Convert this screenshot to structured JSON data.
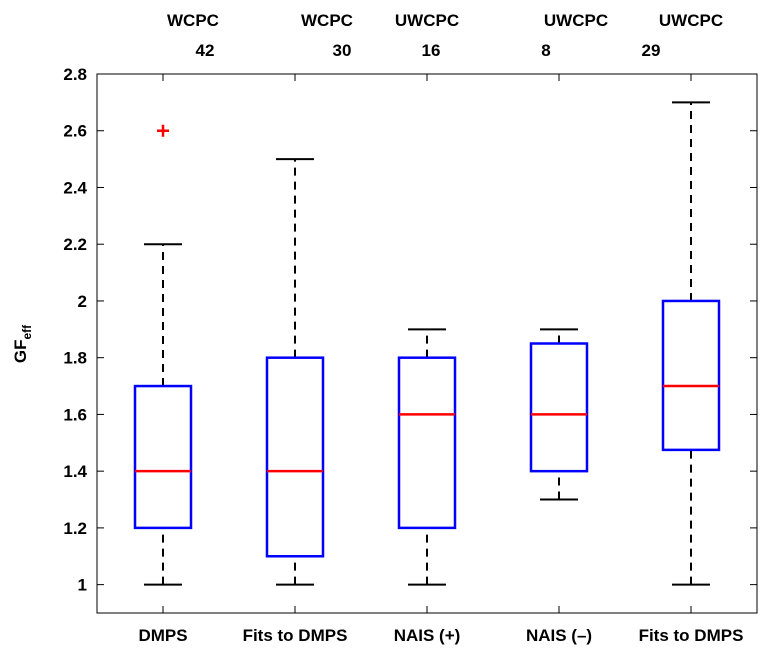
{
  "chart_data": {
    "type": "box",
    "y_label": "GF",
    "y_label_subscript": "eff",
    "categories": [
      "DMPS",
      "Fits to DMPS",
      "NAIS (+)",
      "NAIS (–)",
      "Fits to DMPS"
    ],
    "top_labels": [
      "WCPC",
      "WCPC",
      "UWCPC",
      "UWCPC",
      "UWCPC"
    ],
    "top_numbers": [
      42,
      30,
      16,
      8,
      29
    ],
    "whisker_low": [
      1.0,
      1.0,
      1.0,
      1.3,
      1.0
    ],
    "q1": [
      1.2,
      1.1,
      1.2,
      1.4,
      1.475
    ],
    "median": [
      1.4,
      1.4,
      1.6,
      1.6,
      1.7
    ],
    "q3": [
      1.7,
      1.8,
      1.8,
      1.85,
      2.0
    ],
    "whisker_high": [
      2.2,
      2.5,
      1.9,
      1.9,
      2.7
    ],
    "outliers": [
      [
        2.6
      ],
      [],
      [],
      [],
      []
    ],
    "box_color": "#0000ff",
    "median_color": "#ff0000",
    "whisker_color": "#000000",
    "outlier_color": "#ff0000",
    "ylim": [
      0.9,
      2.8
    ],
    "yticks": [
      1,
      1.2,
      1.4,
      1.6,
      1.8,
      2,
      2.2,
      2.4,
      2.6,
      2.8
    ],
    "grid": false
  }
}
